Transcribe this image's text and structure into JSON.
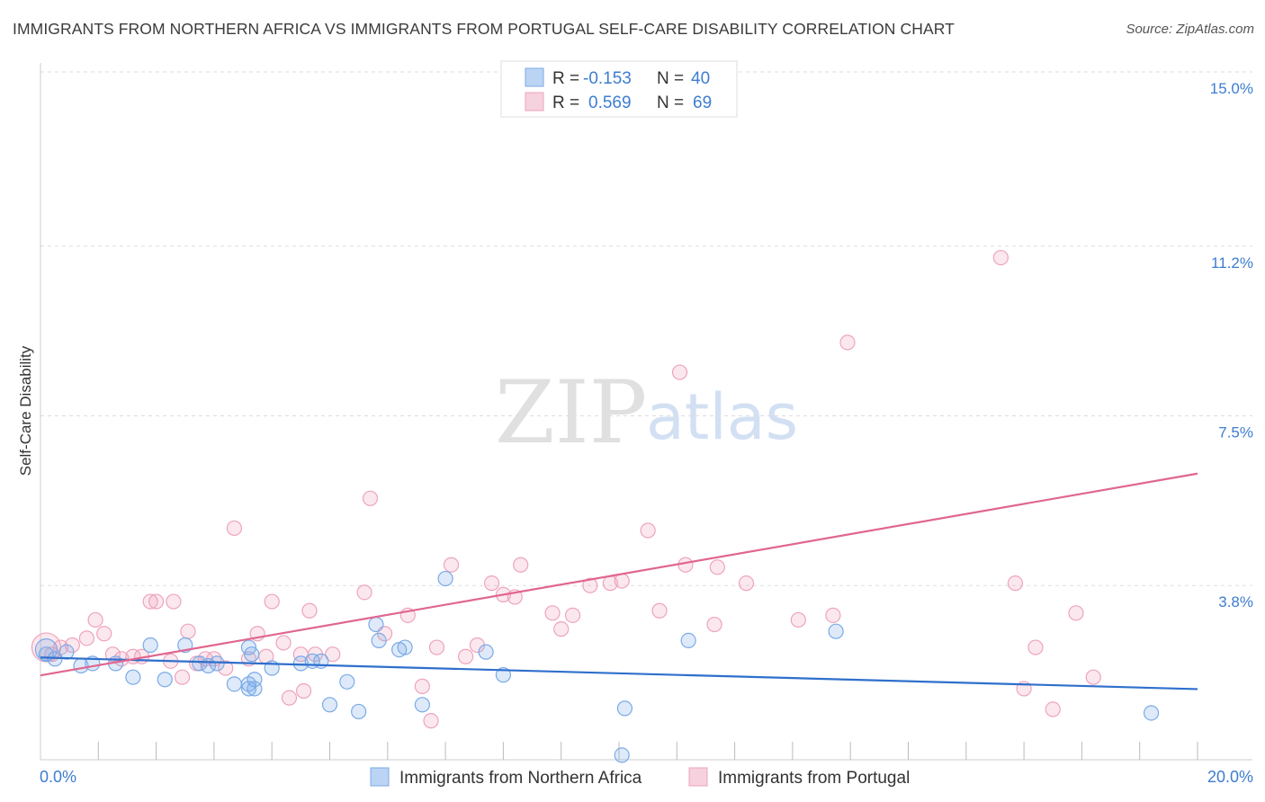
{
  "header": {
    "title": "IMMIGRANTS FROM NORTHERN AFRICA VS IMMIGRANTS FROM PORTUGAL SELF-CARE DISABILITY CORRELATION CHART",
    "source": "Source: ZipAtlas.com"
  },
  "watermark": {
    "zip": "ZIP",
    "atlas": "atlas"
  },
  "colors": {
    "blue": "#7aaae8",
    "blue_fill": "rgba(122,170,232,0.25)",
    "blue_line": "#2f6fcc",
    "pink": "#eea3bd",
    "pink_fill": "rgba(238,163,189,0.25)",
    "pink_line": "#e0668f",
    "accent_text": "#3d7dd0"
  },
  "legend": {
    "r_label": "R =",
    "n_label": "N =",
    "rows": [
      {
        "r": "-0.153",
        "n": "40"
      },
      {
        "r": "0.569",
        "n": "69"
      }
    ]
  },
  "chart_data": {
    "type": "scatter",
    "xlabel": "",
    "ylabel": "Self-Care Disability",
    "x_range": [
      0,
      20
    ],
    "y_range": [
      0,
      15
    ],
    "x_tick_labels": {
      "0": "0.0%",
      "20": "20.0%"
    },
    "y_ticks": [
      3.8,
      7.5,
      11.2,
      15.0
    ],
    "y_tick_labels": [
      "3.8%",
      "7.5%",
      "11.2%",
      "15.0%"
    ],
    "grid": true,
    "series": [
      {
        "name": "Immigrants from Northern Africa",
        "color_key": "blue",
        "r": -0.153,
        "n": 40,
        "trend": {
          "x": [
            0,
            20
          ],
          "y": [
            2.23,
            1.54
          ]
        },
        "points": [
          [
            0.1,
            2.3
          ],
          [
            0.25,
            2.2
          ],
          [
            0.45,
            2.35
          ],
          [
            0.7,
            2.05
          ],
          [
            0.9,
            2.1
          ],
          [
            1.3,
            2.1
          ],
          [
            1.6,
            1.8
          ],
          [
            1.9,
            2.5
          ],
          [
            2.15,
            1.75
          ],
          [
            2.5,
            2.5
          ],
          [
            2.75,
            2.1
          ],
          [
            2.9,
            2.05
          ],
          [
            3.05,
            2.1
          ],
          [
            3.35,
            1.65
          ],
          [
            3.6,
            1.65
          ],
          [
            3.7,
            1.55
          ],
          [
            3.6,
            1.55
          ],
          [
            3.7,
            1.75
          ],
          [
            3.65,
            2.3
          ],
          [
            3.6,
            2.45
          ],
          [
            4.0,
            2.0
          ],
          [
            4.5,
            2.1
          ],
          [
            4.7,
            2.15
          ],
          [
            4.85,
            2.15
          ],
          [
            5.0,
            1.2
          ],
          [
            5.3,
            1.7
          ],
          [
            5.5,
            1.05
          ],
          [
            5.85,
            2.6
          ],
          [
            5.8,
            2.95
          ],
          [
            6.2,
            2.4
          ],
          [
            6.3,
            2.45
          ],
          [
            6.6,
            1.2
          ],
          [
            7.0,
            3.95
          ],
          [
            7.7,
            2.35
          ],
          [
            8.0,
            1.85
          ],
          [
            10.05,
            0.1
          ],
          [
            10.1,
            1.12
          ],
          [
            11.2,
            2.6
          ],
          [
            13.75,
            2.8
          ],
          [
            19.2,
            1.02
          ]
        ]
      },
      {
        "name": "Immigrants from Portugal",
        "color_key": "pink",
        "r": 0.569,
        "n": 69,
        "trend": {
          "x": [
            0,
            20
          ],
          "y": [
            1.84,
            6.24
          ]
        },
        "points": [
          [
            0.2,
            2.3
          ],
          [
            0.35,
            2.45
          ],
          [
            0.55,
            2.5
          ],
          [
            0.8,
            2.65
          ],
          [
            0.95,
            3.05
          ],
          [
            1.1,
            2.75
          ],
          [
            1.25,
            2.3
          ],
          [
            1.4,
            2.2
          ],
          [
            1.6,
            2.25
          ],
          [
            1.75,
            2.25
          ],
          [
            1.9,
            3.45
          ],
          [
            2.0,
            3.45
          ],
          [
            2.3,
            3.45
          ],
          [
            2.25,
            2.15
          ],
          [
            2.45,
            1.8
          ],
          [
            2.55,
            2.8
          ],
          [
            2.7,
            2.1
          ],
          [
            2.85,
            2.2
          ],
          [
            3.0,
            2.2
          ],
          [
            3.2,
            2.0
          ],
          [
            3.35,
            5.05
          ],
          [
            3.6,
            2.2
          ],
          [
            3.75,
            2.75
          ],
          [
            3.9,
            2.25
          ],
          [
            4.0,
            3.45
          ],
          [
            4.2,
            2.55
          ],
          [
            4.3,
            1.35
          ],
          [
            4.5,
            2.3
          ],
          [
            4.55,
            1.5
          ],
          [
            4.65,
            3.25
          ],
          [
            4.75,
            2.3
          ],
          [
            5.05,
            2.3
          ],
          [
            5.6,
            3.65
          ],
          [
            5.7,
            5.7
          ],
          [
            5.95,
            2.75
          ],
          [
            6.35,
            3.15
          ],
          [
            6.6,
            1.6
          ],
          [
            6.75,
            0.85
          ],
          [
            6.85,
            2.45
          ],
          [
            7.1,
            4.25
          ],
          [
            7.35,
            2.25
          ],
          [
            7.55,
            2.5
          ],
          [
            7.8,
            3.85
          ],
          [
            8.0,
            3.6
          ],
          [
            8.2,
            3.55
          ],
          [
            8.3,
            4.25
          ],
          [
            8.85,
            3.2
          ],
          [
            9.0,
            2.85
          ],
          [
            9.2,
            3.15
          ],
          [
            9.5,
            3.8
          ],
          [
            9.85,
            3.85
          ],
          [
            10.05,
            3.9
          ],
          [
            10.5,
            5.0
          ],
          [
            10.7,
            3.25
          ],
          [
            11.05,
            8.45
          ],
          [
            11.15,
            4.25
          ],
          [
            11.65,
            2.95
          ],
          [
            11.7,
            4.2
          ],
          [
            12.2,
            3.85
          ],
          [
            13.1,
            3.05
          ],
          [
            13.7,
            3.15
          ],
          [
            13.95,
            9.1
          ],
          [
            16.6,
            10.95
          ],
          [
            16.85,
            3.85
          ],
          [
            17.0,
            1.55
          ],
          [
            17.2,
            2.45
          ],
          [
            17.5,
            1.1
          ],
          [
            17.9,
            3.2
          ],
          [
            18.2,
            1.8
          ]
        ]
      }
    ]
  }
}
